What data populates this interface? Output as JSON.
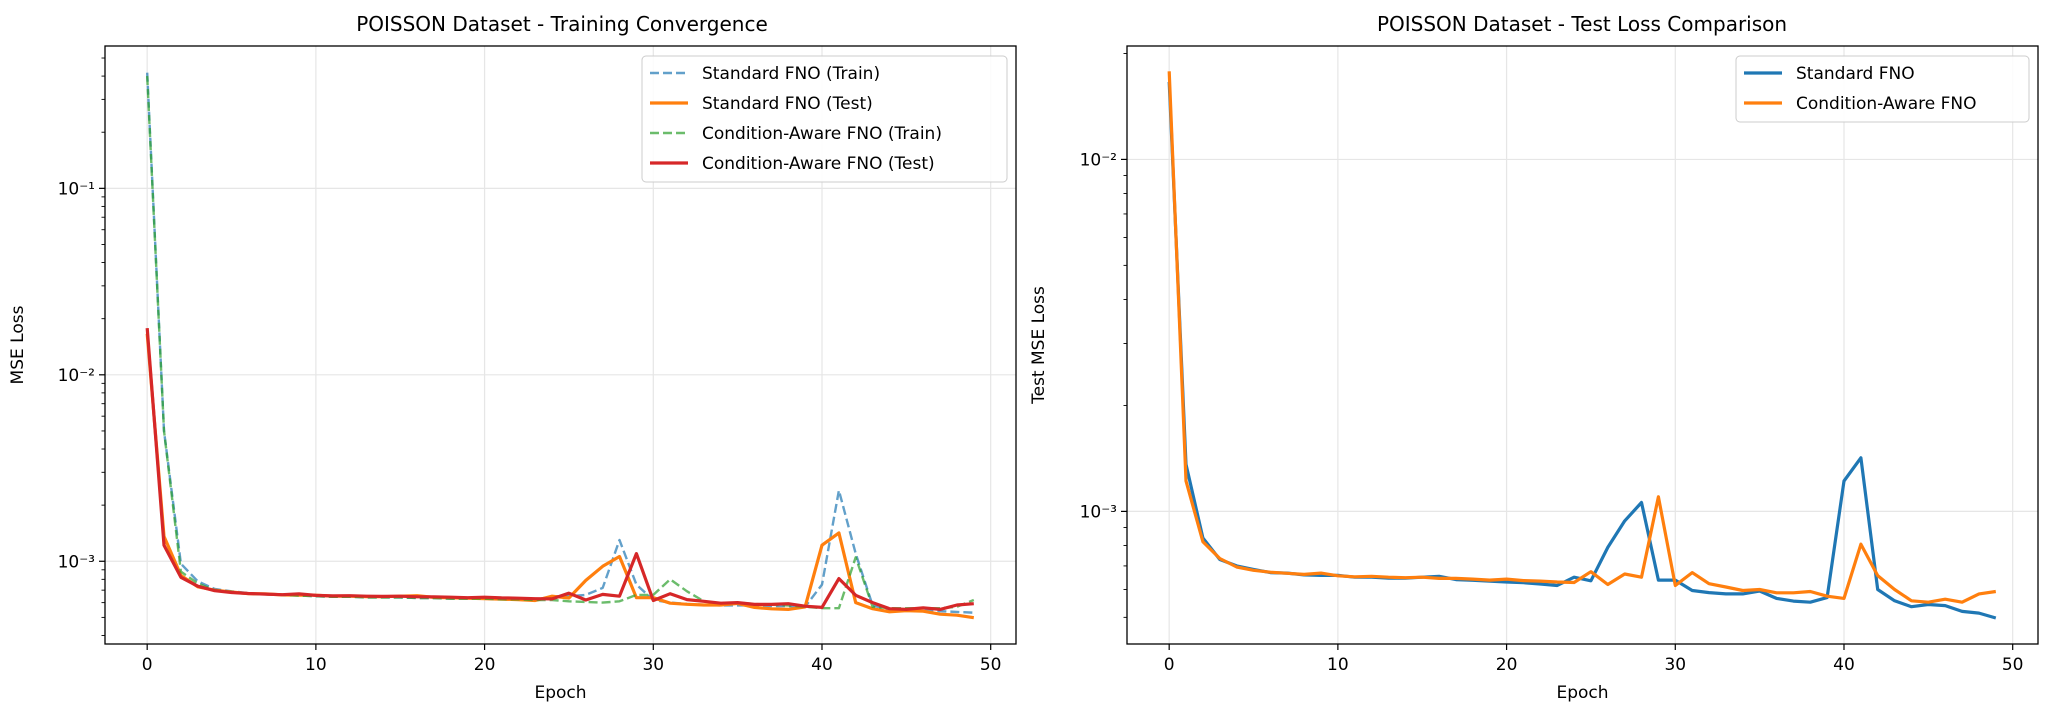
{
  "colors": {
    "standard": "#1f77b4",
    "standard_test_left": "#ff7f0e",
    "ca_train": "#2ca02c",
    "ca_test_left": "#d62728",
    "ca_right": "#ff7f0e"
  },
  "chart_data": [
    {
      "type": "line",
      "title": "POISSON Dataset - Training Convergence",
      "xlabel": "Epoch",
      "ylabel": "MSE Loss",
      "yscale": "log",
      "xlim": [
        -2.5,
        51.5
      ],
      "ylim": [
        0.00036,
        0.58
      ],
      "x_ticks": [
        0,
        10,
        20,
        30,
        40,
        50
      ],
      "x_tick_labels": [
        "0",
        "10",
        "20",
        "30",
        "40",
        "50"
      ],
      "y_ticks": [
        0.1,
        0.01,
        0.001
      ],
      "y_tick_labels": [
        "10⁻¹",
        "10⁻²",
        "10⁻³"
      ],
      "grid": true,
      "legend": "top-right",
      "series": [
        {
          "name": "Standard FNO (Train)",
          "color": "#1f77b4",
          "style": "dashed",
          "values": [
            0.417,
            0.005,
            0.00097,
            0.00078,
            0.00071,
            0.00069,
            0.000675,
            0.000665,
            0.00066,
            0.000655,
            0.00065,
            0.000645,
            0.000645,
            0.00064,
            0.00064,
            0.00064,
            0.000635,
            0.000635,
            0.00063,
            0.00063,
            0.00063,
            0.000625,
            0.000625,
            0.00062,
            0.00065,
            0.00065,
            0.00066,
            0.00072,
            0.0013,
            0.00075,
            0.00062,
            0.0006,
            0.00059,
            0.000585,
            0.00058,
            0.00058,
            0.00058,
            0.000575,
            0.000575,
            0.00057,
            0.00075,
            0.0024,
            0.0011,
            0.00058,
            0.00055,
            0.00055,
            0.000545,
            0.00054,
            0.000535,
            0.00053
          ]
        },
        {
          "name": "Standard FNO (Test)",
          "color": "#ff7f0e",
          "style": "solid",
          "values": [
            0.0166,
            0.00136,
            0.00084,
            0.00073,
            0.0007,
            0.000684,
            0.00067,
            0.000668,
            0.00066,
            0.000658,
            0.000658,
            0.00065,
            0.00065,
            0.000646,
            0.000646,
            0.00065,
            0.000654,
            0.00064,
            0.000637,
            0.000634,
            0.00063,
            0.000627,
            0.000622,
            0.000616,
            0.00065,
            0.000635,
            0.00079,
            0.00094,
            0.00106,
            0.000638,
            0.000638,
            0.000596,
            0.000588,
            0.000583,
            0.000583,
            0.000594,
            0.000566,
            0.000556,
            0.000552,
            0.000569,
            0.00122,
            0.00142,
            0.0006,
            0.000557,
            0.000536,
            0.000544,
            0.00054,
            0.00052,
            0.000514,
            0.000498
          ]
        },
        {
          "name": "Condition-Aware FNO (Train)",
          "color": "#2ca02c",
          "style": "dashed",
          "values": [
            0.4,
            0.005,
            0.00088,
            0.00076,
            0.0007,
            0.000685,
            0.00067,
            0.000665,
            0.00066,
            0.000655,
            0.00065,
            0.000645,
            0.000645,
            0.00064,
            0.00064,
            0.00064,
            0.000635,
            0.000635,
            0.00063,
            0.00063,
            0.00063,
            0.000625,
            0.000625,
            0.00062,
            0.00062,
            0.00061,
            0.000605,
            0.0006,
            0.00061,
            0.00066,
            0.00066,
            0.0008,
            0.00069,
            0.00061,
            0.000595,
            0.0006,
            0.00059,
            0.000585,
            0.00058,
            0.00057,
            0.00056,
            0.00056,
            0.00105,
            0.00057,
            0.00056,
            0.00056,
            0.00056,
            0.00056,
            0.00057,
            0.00062
          ]
        },
        {
          "name": "Condition-Aware FNO (Test)",
          "color": "#d62728",
          "style": "solid",
          "values": [
            0.0178,
            0.00122,
            0.00082,
            0.000735,
            0.000695,
            0.00068,
            0.000672,
            0.000667,
            0.000662,
            0.000668,
            0.000656,
            0.000652,
            0.000654,
            0.00065,
            0.000648,
            0.00065,
            0.000645,
            0.000645,
            0.000642,
            0.000638,
            0.000642,
            0.000636,
            0.000634,
            0.00063,
            0.000628,
            0.000674,
            0.00062,
            0.000664,
            0.00065,
            0.0011,
            0.000616,
            0.00067,
            0.000623,
            0.00061,
            0.000596,
            0.0006,
            0.000587,
            0.000587,
            0.000592,
            0.000574,
            0.000566,
            0.000807,
            0.000657,
            0.0006,
            0.000557,
            0.000552,
            0.000563,
            0.000552,
            0.000583,
            0.000592
          ]
        }
      ]
    },
    {
      "type": "line",
      "title": "POISSON Dataset - Test Loss Comparison",
      "xlabel": "Epoch",
      "ylabel": "Test MSE Loss",
      "yscale": "log",
      "xlim": [
        -2.5,
        51.5
      ],
      "ylim": [
        0.00042,
        0.021
      ],
      "x_ticks": [
        0,
        10,
        20,
        30,
        40,
        50
      ],
      "x_tick_labels": [
        "0",
        "10",
        "20",
        "30",
        "40",
        "50"
      ],
      "y_ticks": [
        0.01,
        0.001
      ],
      "y_tick_labels": [
        "10⁻²",
        "10⁻³"
      ],
      "grid": true,
      "legend": "top-right",
      "series": [
        {
          "name": "Standard FNO",
          "color": "#1f77b4",
          "style": "solid",
          "values": [
            0.0166,
            0.00136,
            0.00084,
            0.00073,
            0.0007,
            0.000684,
            0.00067,
            0.000668,
            0.00066,
            0.000658,
            0.000658,
            0.00065,
            0.00065,
            0.000646,
            0.000646,
            0.00065,
            0.000654,
            0.00064,
            0.000637,
            0.000634,
            0.00063,
            0.000627,
            0.000622,
            0.000616,
            0.00065,
            0.000635,
            0.00079,
            0.00094,
            0.00106,
            0.000638,
            0.000638,
            0.000596,
            0.000588,
            0.000583,
            0.000583,
            0.000594,
            0.000566,
            0.000556,
            0.000552,
            0.000569,
            0.00122,
            0.00142,
            0.0006,
            0.000557,
            0.000536,
            0.000544,
            0.00054,
            0.00052,
            0.000514,
            0.000498
          ]
        },
        {
          "name": "Condition-Aware FNO",
          "color": "#ff7f0e",
          "style": "solid",
          "values": [
            0.0178,
            0.00122,
            0.00082,
            0.000735,
            0.000695,
            0.00068,
            0.000672,
            0.000667,
            0.000662,
            0.000668,
            0.000656,
            0.000652,
            0.000654,
            0.00065,
            0.000648,
            0.00065,
            0.000645,
            0.000645,
            0.000642,
            0.000638,
            0.000642,
            0.000636,
            0.000634,
            0.00063,
            0.000628,
            0.000674,
            0.00062,
            0.000664,
            0.00065,
            0.0011,
            0.000616,
            0.00067,
            0.000623,
            0.00061,
            0.000596,
            0.0006,
            0.000587,
            0.000587,
            0.000592,
            0.000574,
            0.000566,
            0.000807,
            0.000657,
            0.0006,
            0.000557,
            0.000552,
            0.000563,
            0.000552,
            0.000583,
            0.000592
          ]
        }
      ]
    }
  ]
}
